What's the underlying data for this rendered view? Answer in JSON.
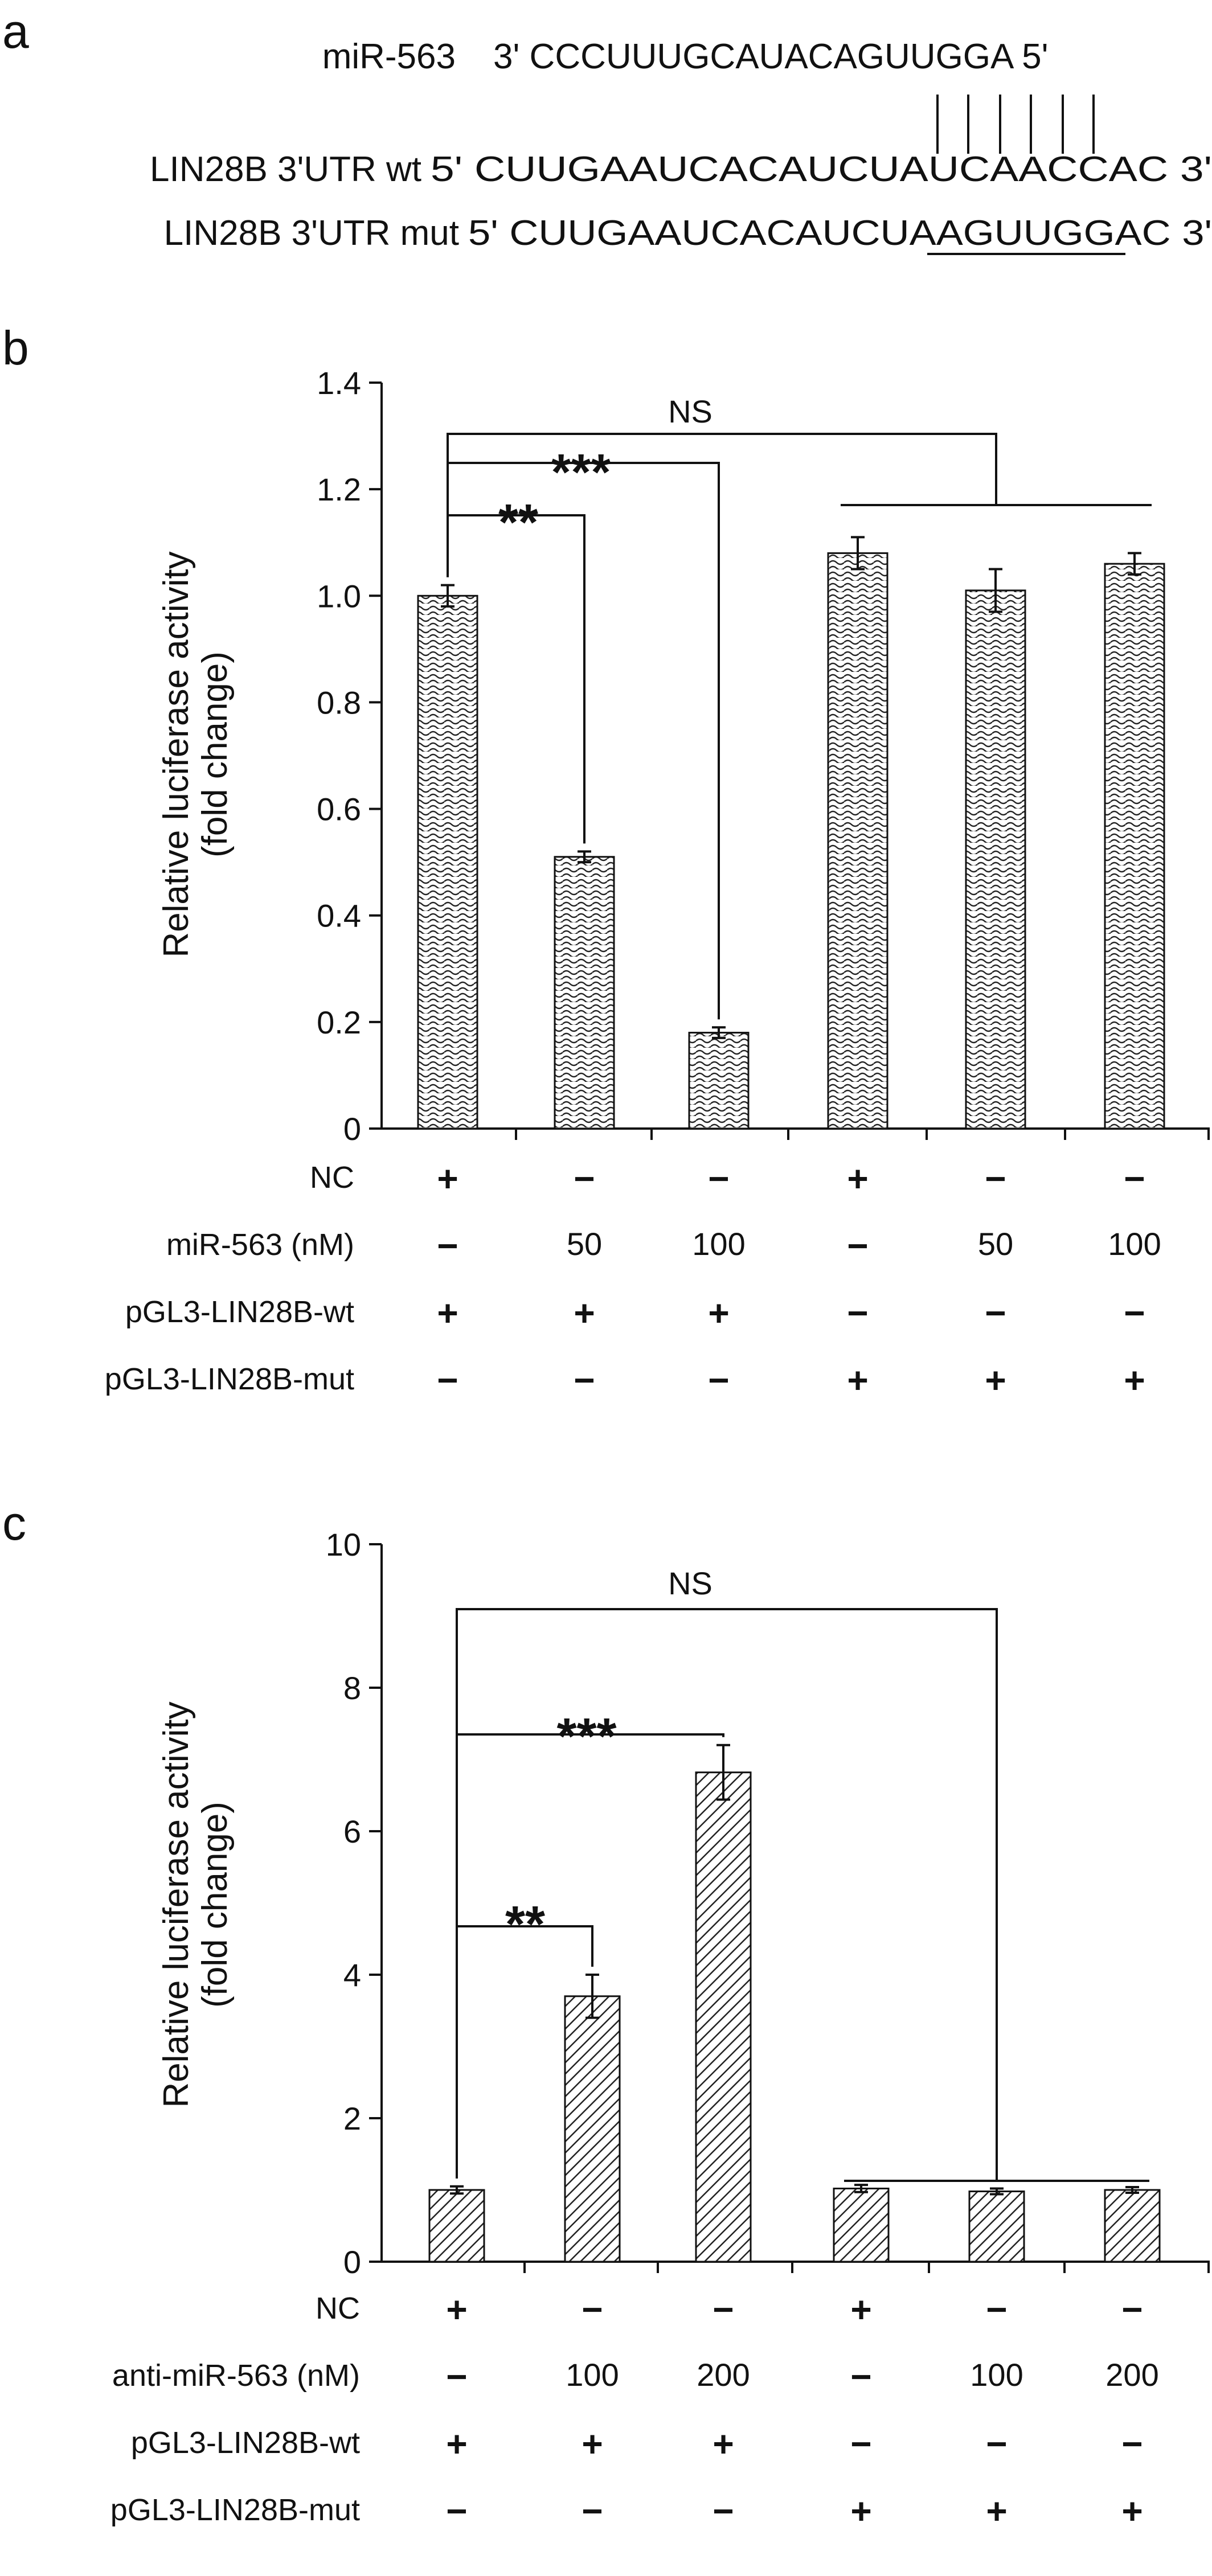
{
  "panels": {
    "a": "a",
    "b": "b",
    "c": "c"
  },
  "sequences": {
    "mir_name": "miR-563",
    "mir_seq": "3' CCCUUUGCAUACAGUUGGA 5'",
    "wt_name": "LIN28B 3'UTR wt",
    "wt_seq": "5' CUUGAAUCACAUCUAUCAACCAC 3'",
    "mut_name": "LIN28B 3'UTR mut",
    "mut_seq": "5' CUUGAAUCACAUCUAAGUUGGAC 3'"
  },
  "chart_data": [
    {
      "type": "bar",
      "panel": "b",
      "ylabel": "Relative luciferase activity",
      "ylabel2": "(fold change)",
      "ylim": [
        0,
        1.4
      ],
      "yticks": [
        0,
        0.2,
        0.4,
        0.6,
        0.8,
        1.0,
        1.2,
        1.4
      ],
      "ytick_labels": [
        "0",
        "0.2",
        "0.4",
        "0.6",
        "0.8",
        "1.0",
        "1.2",
        "1.4"
      ],
      "values": [
        1.0,
        0.51,
        0.18,
        1.08,
        1.01,
        1.06
      ],
      "errors": [
        0.02,
        0.01,
        0.01,
        0.03,
        0.04,
        0.02
      ],
      "significance": [
        {
          "from": 0,
          "to": 1,
          "label": "**"
        },
        {
          "from": 0,
          "to": 2,
          "label": "***"
        },
        {
          "from": 0,
          "to_group": [
            3,
            5
          ],
          "label": "NS"
        }
      ],
      "conditions": [
        {
          "label": "NC",
          "values": [
            "+",
            "−",
            "−",
            "+",
            "−",
            "−"
          ]
        },
        {
          "label": "miR-563 (nM)",
          "values": [
            "−",
            "50",
            "100",
            "−",
            "50",
            "100"
          ]
        },
        {
          "label": "pGL3-LIN28B-wt",
          "values": [
            "+",
            "+",
            "+",
            "−",
            "−",
            "−"
          ]
        },
        {
          "label": "pGL3-LIN28B-mut",
          "values": [
            "−",
            "−",
            "−",
            "+",
            "+",
            "+"
          ]
        }
      ]
    },
    {
      "type": "bar",
      "panel": "c",
      "ylabel": "Relative luciferase activity",
      "ylabel2": "(fold change)",
      "ylim": [
        0,
        10
      ],
      "yticks": [
        0,
        2,
        4,
        6,
        8,
        10
      ],
      "ytick_labels": [
        "0",
        "2",
        "4",
        "6",
        "8",
        "10"
      ],
      "values": [
        1.0,
        3.7,
        6.82,
        1.02,
        0.98,
        1.0
      ],
      "errors": [
        0.05,
        0.3,
        0.38,
        0.05,
        0.04,
        0.04
      ],
      "significance": [
        {
          "from": 0,
          "to": 1,
          "label": "**"
        },
        {
          "from": 0,
          "to": 2,
          "label": "***"
        },
        {
          "from": 0,
          "to_group": [
            3,
            5
          ],
          "label": "NS"
        }
      ],
      "conditions": [
        {
          "label": "NC",
          "values": [
            "+",
            "−",
            "−",
            "+",
            "−",
            "−"
          ]
        },
        {
          "label": "anti-miR-563 (nM)",
          "values": [
            "−",
            "100",
            "200",
            "−",
            "100",
            "200"
          ]
        },
        {
          "label": "pGL3-LIN28B-wt",
          "values": [
            "+",
            "+",
            "+",
            "−",
            "−",
            "−"
          ]
        },
        {
          "label": "pGL3-LIN28B-mut",
          "values": [
            "−",
            "−",
            "−",
            "+",
            "+",
            "+"
          ]
        }
      ]
    }
  ]
}
